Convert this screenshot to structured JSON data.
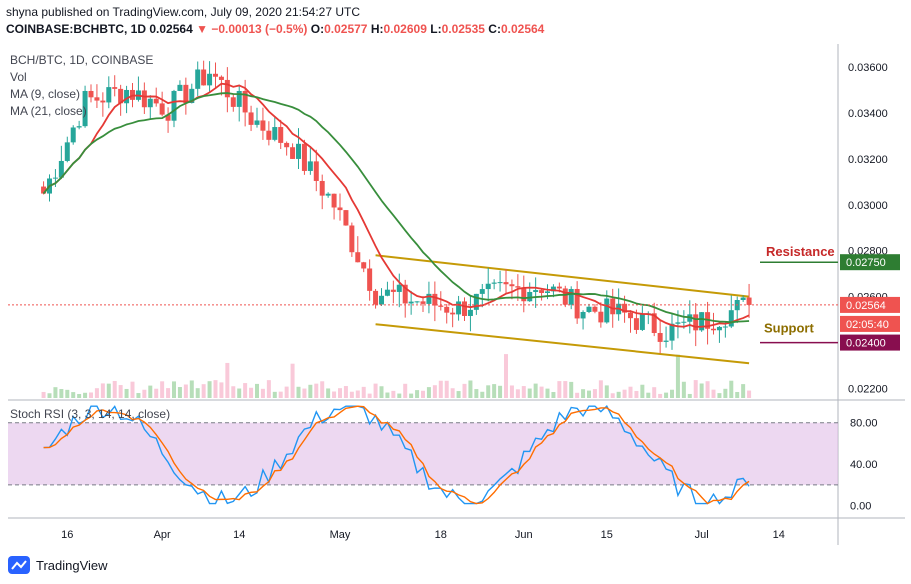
{
  "header": {
    "line1": "shyna published on TradingView.com, July 09, 2020 21:54:27 UTC",
    "symbol": "COINBASE:BCHBTC, 1D",
    "last": "0.02564",
    "change": "−0.00013 (−0.5%)",
    "o_label": "O:",
    "o": "0.02577",
    "h_label": "H:",
    "h": "0.02609",
    "l_label": "L:",
    "l": "0.02535",
    "c_label": "C:",
    "c": "0.02564"
  },
  "legend": {
    "title": "BCH/BTC, 1D, COINBASE",
    "vol": "Vol",
    "ma9": "MA (9, close)",
    "ma21": "MA (21, close)"
  },
  "annotations": {
    "resistance": "Resistance",
    "support": "Support",
    "resistance_price": "0.02750",
    "support_price": "0.02400",
    "last_price": "0.02564",
    "countdown": "02:05:40"
  },
  "rsi": {
    "title": "Stoch RSI (3, 3, 14, 14, close)",
    "ticks": [
      "80.00",
      "40.00",
      "0.00"
    ]
  },
  "footer": {
    "brand": "TradingView"
  },
  "colors": {
    "up": "#26a69a",
    "down": "#ef5350",
    "ma9": "#e53935",
    "ma21": "#388e3c",
    "channel": "#c59a06",
    "rsi_k": "#2196f3",
    "rsi_d": "#ff6d00",
    "rsi_band": "#e1bee7",
    "resistance": "#c62828",
    "support": "#8d6e00",
    "price_tag": "#ef5350",
    "support_tag": "#880e4f",
    "resistance_tag": "#2e7d32"
  },
  "chart_data": {
    "type": "candlestick",
    "symbol": "BCH/BTC",
    "interval": "1D",
    "exchange": "COINBASE",
    "x_tick_labels": [
      "16",
      "Apr",
      "14",
      "May",
      "18",
      "Jun",
      "15",
      "Jul",
      "14"
    ],
    "y_tick_labels": [
      "0.03600",
      "0.03400",
      "0.03200",
      "0.03000",
      "0.02800",
      "0.02600",
      "0.02200"
    ],
    "ylim": [
      0.0215,
      0.037
    ],
    "resistance_level": 0.0275,
    "support_level": 0.024,
    "last_close": 0.02564,
    "channel": {
      "upper": [
        [
          "2020-05-07",
          0.0278
        ],
        [
          "2020-07-09",
          0.026
        ]
      ],
      "lower": [
        [
          "2020-05-07",
          0.0248
        ],
        [
          "2020-07-09",
          0.0231
        ]
      ]
    },
    "series_weekly_close": [
      {
        "date": "2020-03-12",
        "close": 0.0305
      },
      {
        "date": "2020-03-19",
        "close": 0.0345
      },
      {
        "date": "2020-03-26",
        "close": 0.035
      },
      {
        "date": "2020-04-02",
        "close": 0.0342
      },
      {
        "date": "2020-04-09",
        "close": 0.0358
      },
      {
        "date": "2020-04-16",
        "close": 0.0338
      },
      {
        "date": "2020-04-23",
        "close": 0.0325
      },
      {
        "date": "2020-04-30",
        "close": 0.03
      },
      {
        "date": "2020-05-07",
        "close": 0.0262
      },
      {
        "date": "2020-05-14",
        "close": 0.0258
      },
      {
        "date": "2020-05-21",
        "close": 0.0255
      },
      {
        "date": "2020-05-28",
        "close": 0.0262
      },
      {
        "date": "2020-06-04",
        "close": 0.0265
      },
      {
        "date": "2020-06-11",
        "close": 0.0255
      },
      {
        "date": "2020-06-18",
        "close": 0.0252
      },
      {
        "date": "2020-06-25",
        "close": 0.0245
      },
      {
        "date": "2020-07-02",
        "close": 0.025
      },
      {
        "date": "2020-07-09",
        "close": 0.02564
      }
    ],
    "stoch_rsi_ylim": [
      -10,
      100
    ],
    "stoch_rsi_band": [
      20,
      80
    ]
  }
}
